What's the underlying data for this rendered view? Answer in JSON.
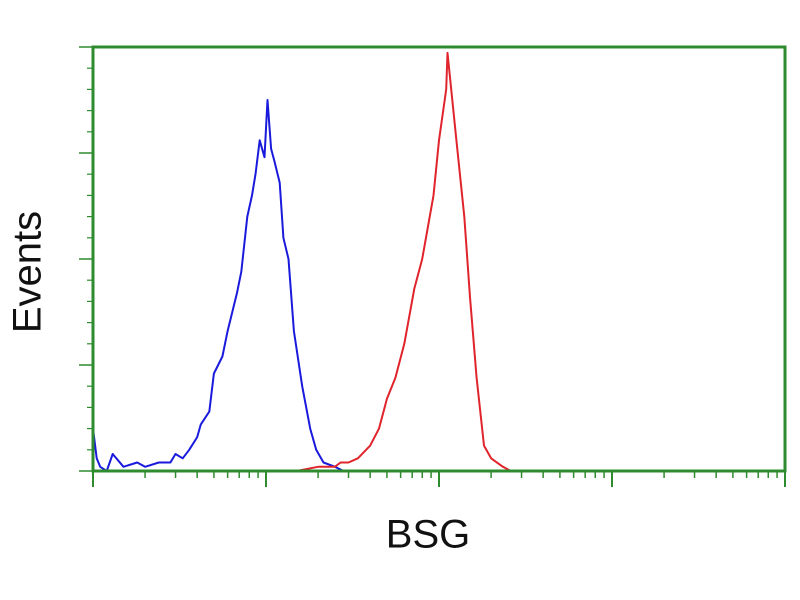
{
  "chart_data": {
    "type": "line",
    "title": "",
    "xlabel": "BSG",
    "ylabel": "Events",
    "x_scale": "log",
    "xlim": [
      1,
      10000
    ],
    "ylim": [
      0,
      100
    ],
    "grid": false,
    "legend": "none",
    "frame_color": "#2e8b2e",
    "series": [
      {
        "color": "#1a1adc",
        "x": [
          1,
          1.05,
          1.1,
          1.2,
          1.3,
          1.5,
          1.8,
          2.0,
          2.4,
          2.8,
          3.0,
          3.3,
          3.6,
          4.0,
          4.2,
          4.7,
          5.0,
          5.6,
          6.0,
          6.8,
          7.2,
          7.8,
          8.3,
          8.7,
          9.2,
          9.8,
          10.2,
          10.7,
          11.2,
          12.0,
          12.6,
          13.5,
          14.5,
          16.2,
          18.0,
          19.5,
          21.5,
          25.1,
          28.0
        ],
        "y": [
          10,
          3,
          1,
          0,
          4,
          1,
          2,
          1,
          2,
          2,
          4,
          3,
          5,
          8,
          11,
          14,
          23,
          27,
          33,
          42,
          47,
          60,
          65,
          70,
          78,
          74,
          87.5,
          76,
          73,
          68,
          55,
          50,
          33,
          20,
          10,
          5,
          2,
          1,
          0
        ]
      },
      {
        "color": "#e0242c",
        "x": [
          15,
          20,
          25,
          27,
          30,
          34,
          40,
          45,
          50,
          56,
          63,
          72,
          80,
          93,
          100,
          110,
          112,
          126,
          140,
          151,
          165,
          182,
          200,
          234,
          260
        ],
        "y": [
          0,
          1,
          1,
          2,
          2,
          3,
          6,
          10,
          17,
          22,
          30,
          43,
          50,
          65,
          78,
          90,
          98.6,
          78,
          60,
          41,
          22,
          6,
          3,
          1,
          0
        ]
      }
    ]
  }
}
